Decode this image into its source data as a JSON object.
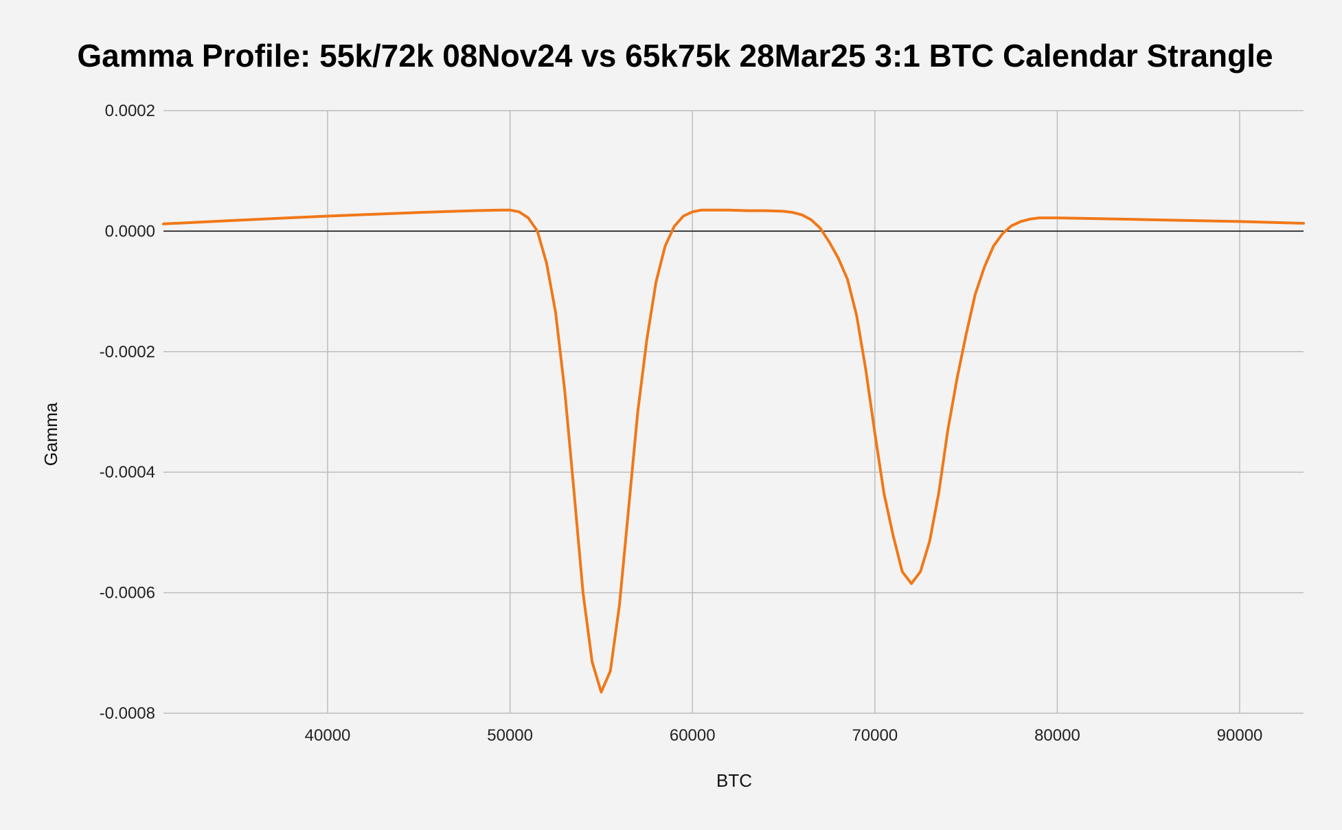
{
  "chart_data": {
    "type": "line",
    "title": "Gamma Profile: 55k/72k 08Nov24 vs 65k75k 28Mar25 3:1 BTC Calendar Strangle",
    "xlabel": "BTC",
    "ylabel": "Gamma",
    "xlim": [
      31000,
      93500
    ],
    "ylim": [
      -0.0008,
      0.0002
    ],
    "x_ticks": [
      40000,
      50000,
      60000,
      70000,
      80000,
      90000
    ],
    "x_tick_labels": [
      "40000",
      "50000",
      "60000",
      "70000",
      "80000",
      "90000"
    ],
    "y_ticks": [
      0.0002,
      0.0,
      -0.0002,
      -0.0004,
      -0.0006,
      -0.0008
    ],
    "y_tick_labels": [
      "0.0002",
      "0.0000",
      "-0.0002",
      "-0.0004",
      "-0.0006",
      "-0.0008"
    ],
    "grid": true,
    "legend": "none",
    "colors": {
      "series": "#f07818",
      "grid": "#bdbdbd",
      "zero_line": "#000000",
      "background": "#f3f3f3"
    },
    "series": [
      {
        "x": [
          31000,
          35000,
          40000,
          45000,
          48000,
          49500,
          50000,
          50500,
          51000,
          51500,
          52000,
          52500,
          53000,
          53500,
          54000,
          54500,
          55000,
          55500,
          56000,
          56500,
          57000,
          57500,
          58000,
          58500,
          59000,
          59500,
          60000,
          60500,
          61000,
          62000,
          63000,
          64000,
          65000,
          65500,
          66000,
          66500,
          67000,
          67500,
          68000,
          68500,
          69000,
          69500,
          70000,
          70500,
          71000,
          71500,
          72000,
          72500,
          73000,
          73500,
          74000,
          74500,
          75000,
          75500,
          76000,
          76500,
          77000,
          77500,
          78000,
          78500,
          79000,
          80000,
          85000,
          90000,
          93500
        ],
        "y": [
          1.2e-05,
          1.8e-05,
          2.5e-05,
          3.1e-05,
          3.4e-05,
          3.5e-05,
          3.5e-05,
          3.2e-05,
          2.2e-05,
          0.0,
          -5.3e-05,
          -0.000135,
          -0.000265,
          -0.00043,
          -0.0006,
          -0.000715,
          -0.000765,
          -0.00073,
          -0.00062,
          -0.00046,
          -0.0003,
          -0.00018,
          -8.5e-05,
          -2.5e-05,
          8e-06,
          2.5e-05,
          3.2e-05,
          3.5e-05,
          3.5e-05,
          3.5e-05,
          3.4e-05,
          3.4e-05,
          3.3e-05,
          3.1e-05,
          2.7e-05,
          1.9e-05,
          5e-06,
          -1.8e-05,
          -4.5e-05,
          -8e-05,
          -0.00014,
          -0.00023,
          -0.000335,
          -0.000435,
          -0.000505,
          -0.000565,
          -0.000585,
          -0.000565,
          -0.000515,
          -0.000435,
          -0.00033,
          -0.000245,
          -0.000172,
          -0.000105,
          -6e-05,
          -2.5e-05,
          -4e-06,
          9e-06,
          1.6e-05,
          2e-05,
          2.2e-05,
          2.2e-05,
          1.9e-05,
          1.6e-05,
          1.3e-05
        ]
      }
    ]
  }
}
